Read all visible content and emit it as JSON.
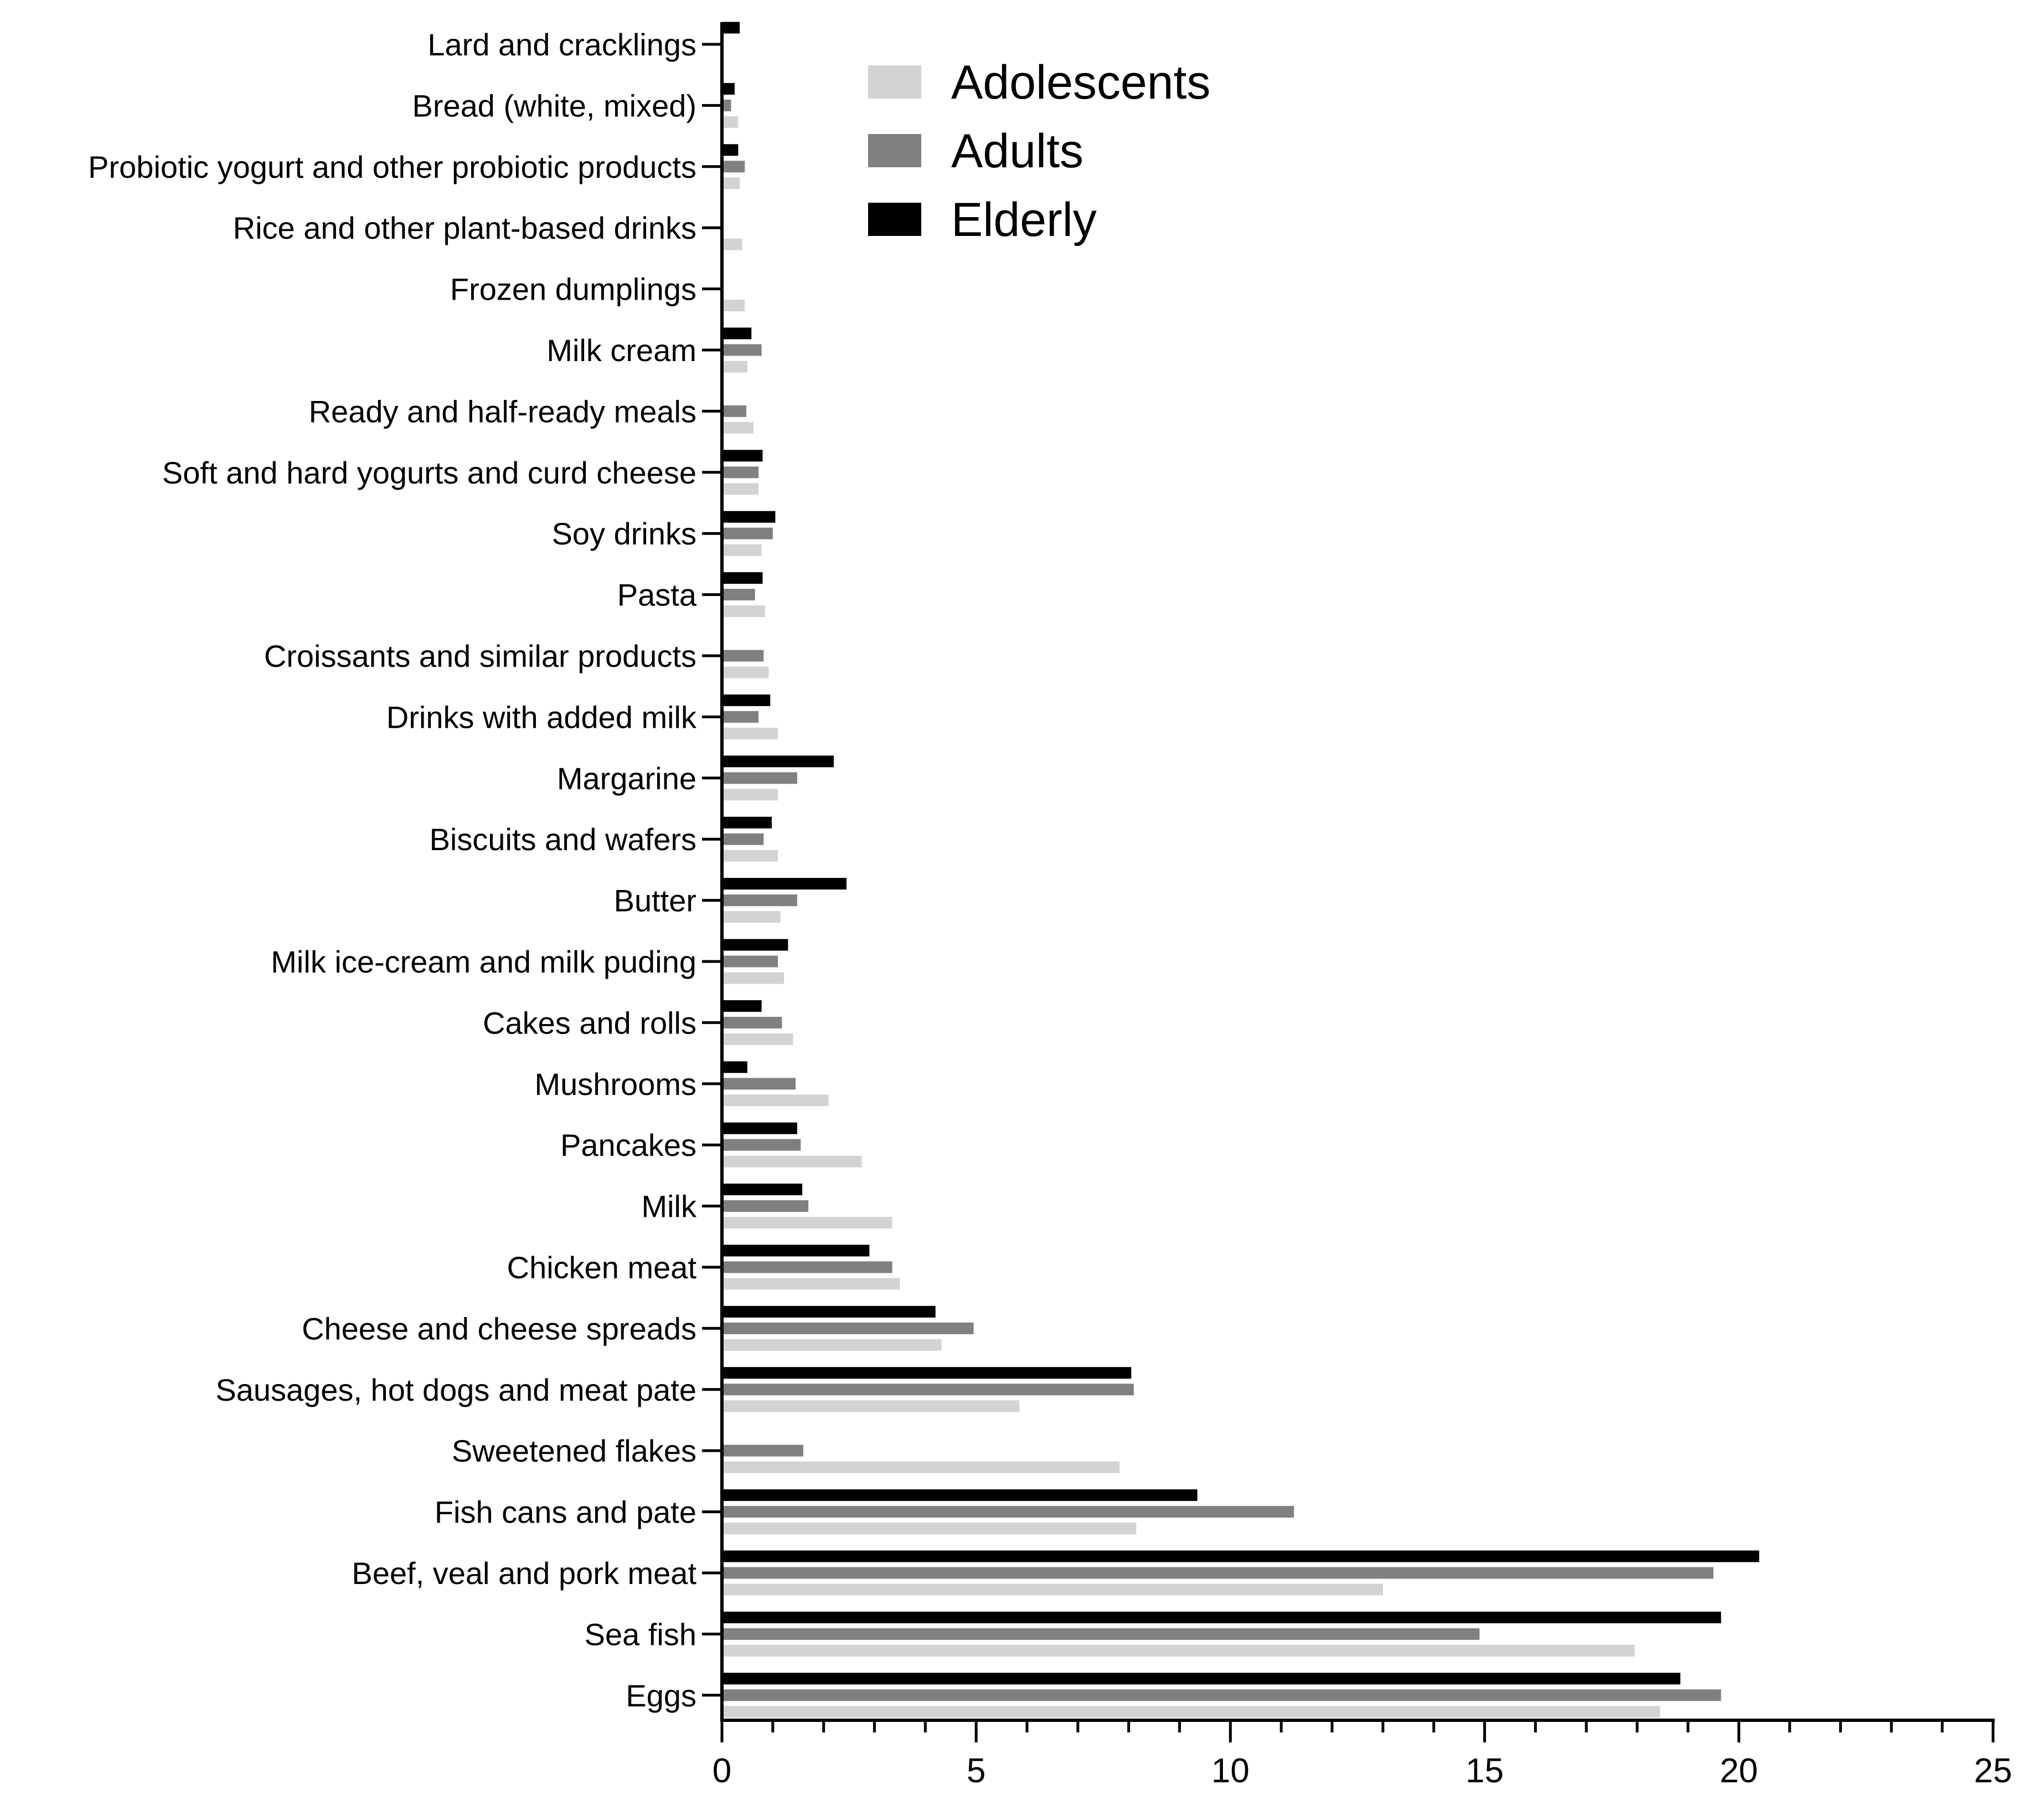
{
  "chart_data": {
    "type": "bar",
    "orientation": "horizontal",
    "title": "",
    "xlabel": "",
    "ylabel": "",
    "xlim": [
      0,
      25
    ],
    "x_ticks": [
      0,
      5,
      10,
      15,
      20,
      25
    ],
    "grid": false,
    "legend_position": "top-center",
    "categories": [
      "Lard and cracklings",
      "Bread (white, mixed)",
      "Probiotic yogurt and other probiotic products",
      "Rice and other plant-based drinks",
      "Frozen dumplings",
      "Milk cream",
      "Ready and half-ready meals",
      "Soft and hard yogurts and curd cheese",
      "Soy drinks",
      "Pasta",
      "Croissants and similar products",
      "Drinks with added milk",
      "Margarine",
      "Biscuits and wafers",
      "Butter",
      "Milk ice-cream and milk puding",
      "Cakes and rolls",
      "Mushrooms",
      "Pancakes",
      "Milk",
      "Chicken meat",
      "Cheese and cheese spreads",
      "Sausages, hot dogs and meat pate",
      "Sweetened flakes",
      "Fish cans and pate",
      "Beef, veal and pork meat",
      "Sea fish",
      "Eggs"
    ],
    "series": [
      {
        "name": "Elderly",
        "color": "#000000",
        "values": [
          0.35,
          0.25,
          0.32,
          0,
          0,
          0.58,
          0,
          0.8,
          1.05,
          0.8,
          0,
          0.95,
          2.2,
          0.98,
          2.45,
          1.3,
          0.78,
          0.5,
          1.48,
          1.58,
          2.9,
          4.2,
          8.05,
          0,
          9.35,
          20.4,
          19.65,
          18.85
        ]
      },
      {
        "name": "Adults",
        "color": "#808080",
        "values": [
          0,
          0.18,
          0.45,
          0,
          0,
          0.78,
          0.48,
          0.72,
          1.0,
          0.65,
          0.82,
          0.72,
          1.48,
          0.82,
          1.48,
          1.1,
          1.18,
          1.45,
          1.55,
          1.7,
          3.35,
          4.95,
          8.1,
          1.6,
          11.25,
          19.5,
          14.9,
          19.65
        ]
      },
      {
        "name": "Adolescents",
        "color": "#d3d3d3",
        "values": [
          0,
          0.32,
          0.35,
          0.4,
          0.45,
          0.5,
          0.62,
          0.72,
          0.78,
          0.85,
          0.92,
          1.1,
          1.1,
          1.1,
          1.15,
          1.22,
          1.4,
          2.1,
          2.75,
          3.35,
          3.5,
          4.32,
          5.85,
          7.82,
          8.15,
          13.0,
          17.95,
          18.45
        ]
      }
    ],
    "legend": [
      {
        "name": "Adolescents",
        "color": "#d3d3d3"
      },
      {
        "name": "Adults",
        "color": "#808080"
      },
      {
        "name": "Elderly",
        "color": "#000000"
      }
    ]
  }
}
